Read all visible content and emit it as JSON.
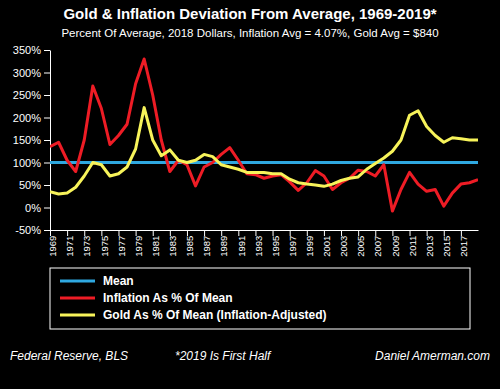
{
  "chart_data": {
    "type": "line",
    "title": "Gold & Inflation Deviation From Average, 1969-2019*",
    "subtitle": "Percent Of Average, 2018 Dollars, Inflation Avg = 4.07%, Gold Avg = $840",
    "annotations": [
      "Federal Reserve, BLS",
      "*2019 Is First Half",
      "Daniel Amerman.com"
    ],
    "x": [
      1969,
      1970,
      1971,
      1972,
      1973,
      1974,
      1975,
      1976,
      1977,
      1978,
      1979,
      1980,
      1981,
      1982,
      1983,
      1984,
      1985,
      1986,
      1987,
      1988,
      1989,
      1990,
      1991,
      1992,
      1993,
      1994,
      1995,
      1996,
      1997,
      1998,
      1999,
      2000,
      2001,
      2002,
      2003,
      2004,
      2005,
      2006,
      2007,
      2008,
      2009,
      2010,
      2011,
      2012,
      2013,
      2014,
      2015,
      2016,
      2017,
      2018,
      2019
    ],
    "series": [
      {
        "name": "Mean",
        "color": "#2fa8e0",
        "values": [
          100,
          100,
          100,
          100,
          100,
          100,
          100,
          100,
          100,
          100,
          100,
          100,
          100,
          100,
          100,
          100,
          100,
          100,
          100,
          100,
          100,
          100,
          100,
          100,
          100,
          100,
          100,
          100,
          100,
          100,
          100,
          100,
          100,
          100,
          100,
          100,
          100,
          100,
          100,
          100,
          100,
          100,
          100,
          100,
          100,
          100,
          100,
          100,
          100,
          100,
          100
        ]
      },
      {
        "name": "Inflation As % Of Mean",
        "color": "#ee1c25",
        "values": [
          135,
          145,
          105,
          80,
          150,
          270,
          220,
          140,
          160,
          185,
          275,
          330,
          250,
          150,
          80,
          105,
          95,
          48,
          90,
          100,
          118,
          133,
          105,
          75,
          73,
          65,
          70,
          73,
          57,
          38,
          55,
          82,
          70,
          40,
          55,
          65,
          83,
          80,
          70,
          95,
          -8,
          40,
          78,
          52,
          36,
          40,
          3,
          32,
          52,
          55,
          62
        ]
      },
      {
        "name": "Gold As % Of Mean (Inflation-Adjusted)",
        "color": "#f7f35a",
        "values": [
          35,
          30,
          32,
          45,
          70,
          100,
          95,
          70,
          75,
          90,
          130,
          222,
          150,
          115,
          128,
          105,
          100,
          105,
          118,
          113,
          95,
          90,
          85,
          78,
          78,
          78,
          75,
          75,
          63,
          55,
          52,
          50,
          47,
          52,
          60,
          65,
          68,
          85,
          98,
          110,
          125,
          150,
          205,
          215,
          180,
          160,
          145,
          155,
          153,
          150,
          150
        ]
      }
    ],
    "xlim": [
      1969,
      2019
    ],
    "xticks": [
      1969,
      1971,
      1973,
      1975,
      1977,
      1979,
      1981,
      1983,
      1985,
      1987,
      1989,
      1991,
      1993,
      1995,
      1997,
      1999,
      2001,
      2003,
      2005,
      2007,
      2009,
      2011,
      2013,
      2015,
      2017
    ],
    "ylim": [
      -50,
      350
    ],
    "yticks": [
      {
        "value": -50,
        "label": "-50%"
      },
      {
        "value": 0,
        "label": "0%"
      },
      {
        "value": 50,
        "label": "50%"
      },
      {
        "value": 100,
        "label": "100%"
      },
      {
        "value": 150,
        "label": "150%"
      },
      {
        "value": 200,
        "label": "200%"
      },
      {
        "value": 250,
        "label": "250%"
      },
      {
        "value": 300,
        "label": "300%"
      },
      {
        "value": 350,
        "label": "350%"
      }
    ],
    "grid": false,
    "legend": "bottom"
  }
}
